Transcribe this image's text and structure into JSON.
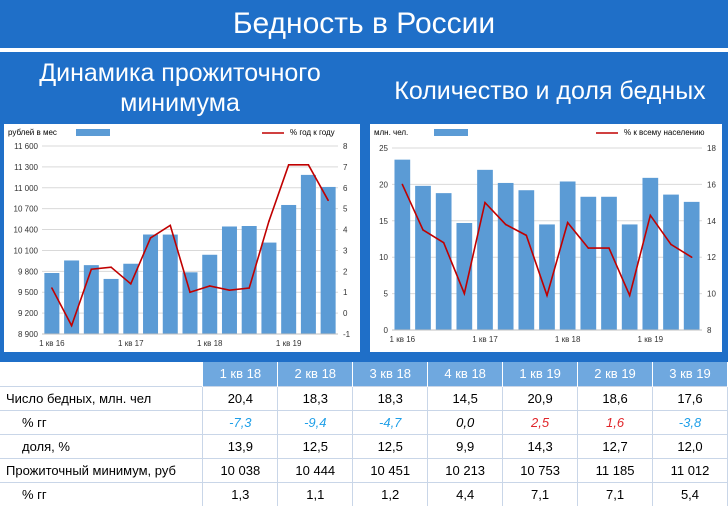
{
  "header": {
    "title": "Бедность в России"
  },
  "subtitles": {
    "left": "Динамика прожиточного минимума",
    "right": "Количество и доля бедных"
  },
  "chart_data": [
    {
      "type": "bar+line",
      "left_axis_label": "рублей в мес",
      "legend_line": "% год к году",
      "bar_color": "#5b9bd5",
      "line_color": "#c00000",
      "x_ticks": [
        "1 кв 16",
        "1 кв 17",
        "1 кв 18",
        "1 кв 19"
      ],
      "categories": [
        "1 кв 16",
        "2 кв 16",
        "3 кв 16",
        "4 кв 16",
        "1 кв 17",
        "2 кв 17",
        "3 кв 17",
        "4 кв 17",
        "1 кв 18",
        "2 кв 18",
        "3 кв 18",
        "4 кв 18",
        "1 кв 19",
        "2 кв 19",
        "3 кв 19"
      ],
      "bars": [
        9776,
        9956,
        9889,
        9691,
        9909,
        10329,
        10328,
        9786,
        10038,
        10444,
        10451,
        10213,
        10753,
        11185,
        11012
      ],
      "line": [
        1.2,
        -0.6,
        2.1,
        2.2,
        1.4,
        3.6,
        4.2,
        1.0,
        1.3,
        1.1,
        1.2,
        4.4,
        7.1,
        7.1,
        5.4
      ],
      "y_left": {
        "min": 8900,
        "max": 11600,
        "ticks": [
          "8 900",
          "9 200",
          "9 500",
          "9 800",
          "10 100",
          "10 400",
          "10 700",
          "11 000",
          "11 300",
          "11 600"
        ]
      },
      "y_right": {
        "min": -1,
        "max": 8,
        "ticks": [
          "-1",
          "0",
          "1",
          "2",
          "3",
          "4",
          "5",
          "6",
          "7",
          "8"
        ]
      }
    },
    {
      "type": "bar+line",
      "left_axis_label": "млн. чел.",
      "legend_line": "% к всему населению",
      "bar_color": "#5b9bd5",
      "line_color": "#c00000",
      "x_ticks": [
        "1 кв 16",
        "1 кв 17",
        "1 кв 18",
        "1 кв 19"
      ],
      "categories": [
        "1 кв 16",
        "2 кв 16",
        "3 кв 16",
        "4 кв 16",
        "1 кв 17",
        "2 кв 17",
        "3 кв 17",
        "4 кв 17",
        "1 кв 18",
        "2 кв 18",
        "3 кв 18",
        "4 кв 18",
        "1 кв 19",
        "2 кв 19",
        "3 кв 19"
      ],
      "bars": [
        23.4,
        19.8,
        18.8,
        14.7,
        22.0,
        20.2,
        19.2,
        14.5,
        20.4,
        18.3,
        18.3,
        14.5,
        20.9,
        18.6,
        17.6
      ],
      "line": [
        16.0,
        13.5,
        12.8,
        10.0,
        15.0,
        13.8,
        13.2,
        9.9,
        13.9,
        12.5,
        12.5,
        9.9,
        14.3,
        12.7,
        12.0
      ],
      "y_left": {
        "min": 0,
        "max": 25,
        "ticks": [
          "0",
          "5",
          "10",
          "15",
          "20",
          "25"
        ]
      },
      "y_right": {
        "min": 8,
        "max": 18,
        "ticks": [
          "8",
          "10",
          "12",
          "14",
          "16",
          "18"
        ]
      }
    }
  ],
  "table": {
    "columns": [
      "1 кв 18",
      "2 кв 18",
      "3 кв 18",
      "4 кв 18",
      "1 кв 19",
      "2 кв 19",
      "3 кв 19"
    ],
    "rows": [
      {
        "label": "Число бедных, млн. чел",
        "indent": false,
        "style": "plain",
        "values": [
          "20,4",
          "18,3",
          "18,3",
          "14,5",
          "20,9",
          "18,6",
          "17,6"
        ]
      },
      {
        "label": "% гг",
        "indent": true,
        "style": "signed",
        "values": [
          "-7,3",
          "-9,4",
          "-4,7",
          "0,0",
          "2,5",
          "1,6",
          "-3,8"
        ]
      },
      {
        "label": "доля, %",
        "indent": true,
        "style": "plain",
        "values": [
          "13,9",
          "12,5",
          "12,5",
          "9,9",
          "14,3",
          "12,7",
          "12,0"
        ]
      },
      {
        "label": "Прожиточный минимум, руб",
        "indent": false,
        "style": "plain",
        "values": [
          "10 038",
          "10 444",
          "10 451",
          "10 213",
          "10 753",
          "11 185",
          "11 012"
        ]
      },
      {
        "label": "% гг",
        "indent": true,
        "style": "plain",
        "values": [
          "1,3",
          "1,1",
          "1,2",
          "4,4",
          "7,1",
          "7,1",
          "5,4"
        ]
      }
    ]
  }
}
